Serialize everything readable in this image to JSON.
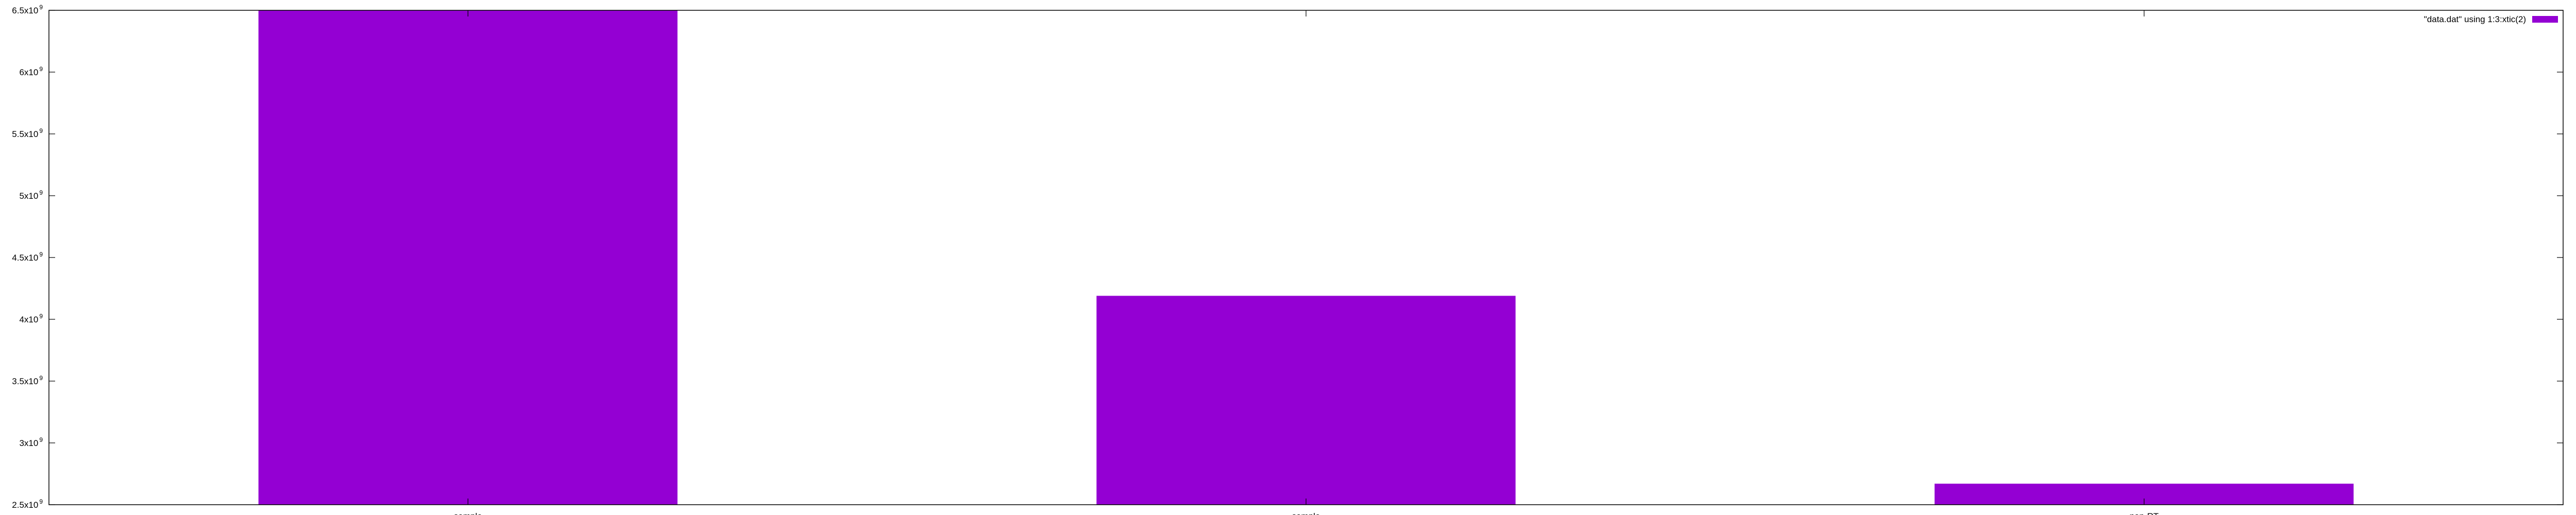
{
  "chart_data": {
    "type": "bar",
    "categories": [
      "sample",
      "sample",
      "non-RT"
    ],
    "series": [
      {
        "name": "\"data.dat\" using 1:3:xtic(2)",
        "values": [
          6500000000,
          4190000000,
          2670000000
        ],
        "color": "#9400d3"
      }
    ],
    "ylim": [
      2500000000,
      6500000000
    ],
    "yticks": [
      {
        "value": 2500000000,
        "mantissa": "2.5x10",
        "exponent": "9"
      },
      {
        "value": 3000000000,
        "mantissa": "3x10",
        "exponent": "9"
      },
      {
        "value": 3500000000,
        "mantissa": "3.5x10",
        "exponent": "9"
      },
      {
        "value": 4000000000,
        "mantissa": "4x10",
        "exponent": "9"
      },
      {
        "value": 4500000000,
        "mantissa": "4.5x10",
        "exponent": "9"
      },
      {
        "value": 5000000000,
        "mantissa": "5x10",
        "exponent": "9"
      },
      {
        "value": 5500000000,
        "mantissa": "5.5x10",
        "exponent": "9"
      },
      {
        "value": 6000000000,
        "mantissa": "6x10",
        "exponent": "9"
      },
      {
        "value": 6500000000,
        "mantissa": "6.5x10",
        "exponent": "9"
      }
    ],
    "xlim": [
      -0.5,
      2.5
    ],
    "bar_width": 0.5,
    "legend_position": "top-right",
    "grid": false
  }
}
